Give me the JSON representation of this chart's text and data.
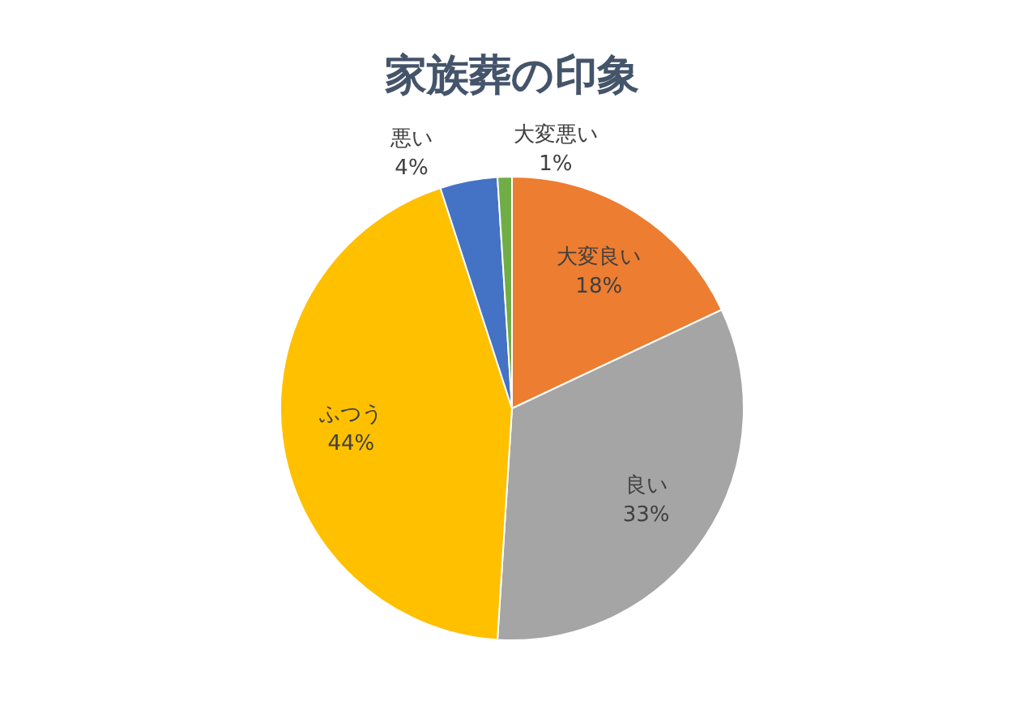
{
  "chart_data": {
    "type": "pie",
    "title": "家族葬の印象",
    "categories": [
      "大変良い",
      "良い",
      "ふつう",
      "悪い",
      "大変悪い"
    ],
    "values": [
      18,
      33,
      44,
      4,
      1
    ],
    "value_labels": [
      "18%",
      "33%",
      "44%",
      "4%",
      "1%"
    ],
    "colors": [
      "#ed7d31",
      "#a5a5a5",
      "#ffc000",
      "#4472c4",
      "#70ad47"
    ]
  }
}
